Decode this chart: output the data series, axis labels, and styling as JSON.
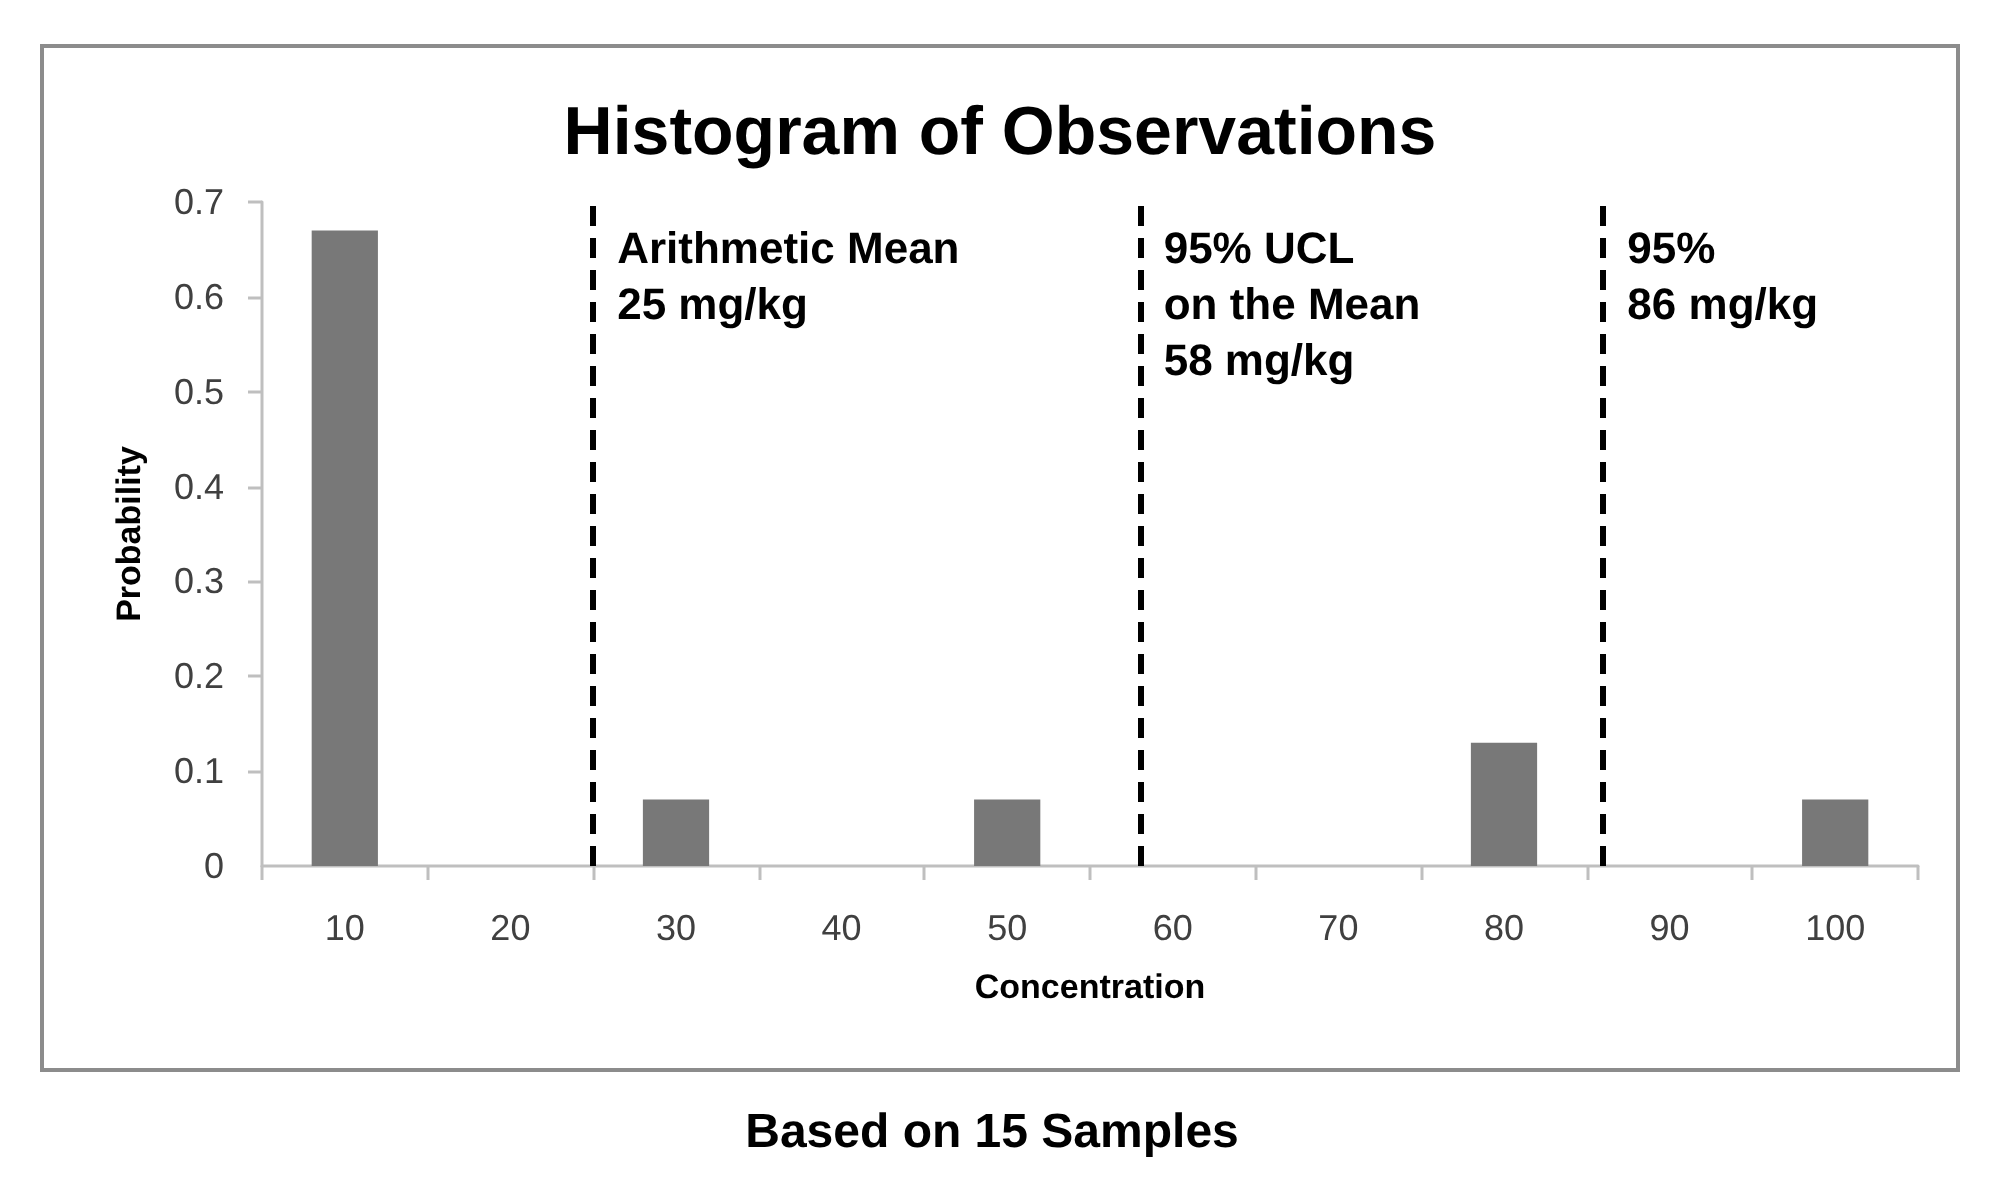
{
  "chart_data": {
    "type": "bar",
    "title": "Histogram of Observations",
    "xlabel": "Concentration",
    "ylabel": "Probability",
    "x": [
      10,
      20,
      30,
      40,
      50,
      60,
      70,
      80,
      90,
      100
    ],
    "values": [
      0.67,
      0,
      0.07,
      0,
      0.07,
      0,
      0,
      0.13,
      0,
      0.07
    ],
    "color": "#787878",
    "xlim": [
      5,
      105
    ],
    "xticks": [
      {
        "value": 5,
        "label": null
      },
      10,
      {
        "value": 15,
        "label": null
      },
      20,
      {
        "value": 25,
        "label": null
      },
      30,
      {
        "value": 35,
        "label": null
      },
      40,
      {
        "value": 45,
        "label": null
      },
      50,
      {
        "value": 55,
        "label": null
      },
      60,
      {
        "value": 65,
        "label": null
      },
      70,
      {
        "value": 75,
        "label": null
      },
      80,
      {
        "value": 85,
        "label": null
      },
      90,
      {
        "value": 95,
        "label": null
      },
      100,
      {
        "value": 105,
        "label": null
      }
    ],
    "ylim": [
      0,
      0.7
    ],
    "yticks": [
      0,
      0.1,
      0.2,
      0.3,
      0.4,
      0.5,
      0.6,
      0.7
    ],
    "ref_lines": [
      {
        "axis": "x",
        "value": 25,
        "label": "Arithmetic Mean\n25 mg/kg",
        "color": "#000000",
        "line_style": "dashed"
      },
      {
        "axis": "x",
        "value": 58,
        "label": "95% UCL\non the Mean\n58 mg/kg",
        "color": "#000000",
        "line_style": "dashed"
      },
      {
        "axis": "x",
        "value": 86,
        "label": "95%\n86 mg/kg",
        "color": "#000000",
        "line_style": "dashed"
      }
    ],
    "annotations": [
      "Based on 15 Samples"
    ]
  }
}
